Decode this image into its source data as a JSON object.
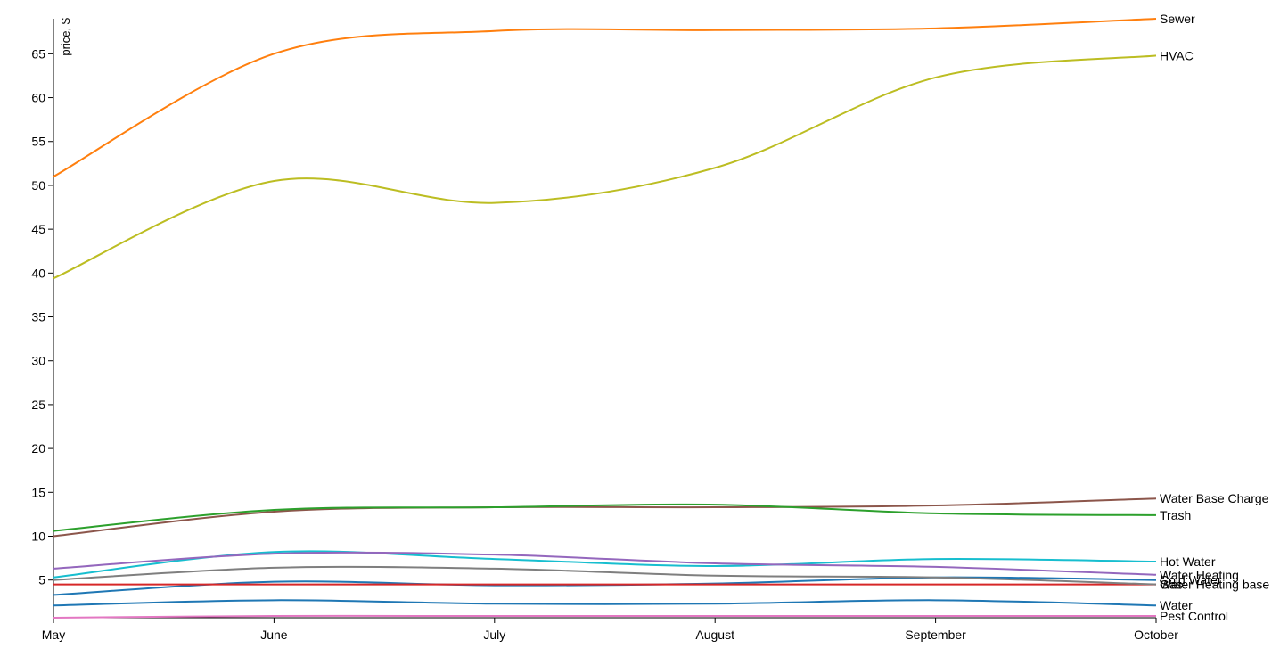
{
  "chart_data": {
    "type": "line",
    "y_label": "price, $",
    "categories": [
      "May",
      "June",
      "July",
      "August",
      "September",
      "October"
    ],
    "ylim": [
      0.7,
      69
    ],
    "yticks": [
      5,
      10,
      15,
      20,
      25,
      30,
      35,
      40,
      45,
      50,
      55,
      60,
      65
    ],
    "series": [
      {
        "name": "Sewer",
        "color": "#ff7f0e",
        "values": [
          51,
          65,
          67.6,
          67.7,
          67.9,
          69
        ]
      },
      {
        "name": "HVAC",
        "color": "#bcbd22",
        "values": [
          39.4,
          50.5,
          48,
          52,
          62.3,
          64.8
        ]
      },
      {
        "name": "Water Base Charge",
        "color": "#8c564b",
        "values": [
          10,
          12.8,
          13.3,
          13.3,
          13.5,
          14.3
        ]
      },
      {
        "name": "Trash",
        "color": "#2ca02c",
        "values": [
          10.6,
          13,
          13.3,
          13.6,
          12.6,
          12.4
        ]
      },
      {
        "name": "Hot Water",
        "color": "#17becf",
        "values": [
          5.3,
          8.2,
          7.4,
          6.6,
          7.4,
          7.1
        ]
      },
      {
        "name": "Water Heating",
        "color": "#9467bd",
        "values": [
          6.3,
          8,
          7.9,
          6.9,
          6.5,
          5.6
        ]
      },
      {
        "name": "Cold Water",
        "color": "#1f77b4",
        "values": [
          3.3,
          4.8,
          4.4,
          4.6,
          5.3,
          5
        ]
      },
      {
        "name": "Gas",
        "color": "#d62728",
        "values": [
          4.5,
          4.5,
          4.5,
          4.5,
          4.5,
          4.5
        ]
      },
      {
        "name": "Water Heating base",
        "color": "#7f7f7f",
        "values": [
          5,
          6.4,
          6.3,
          5.5,
          5.3,
          4.5
        ]
      },
      {
        "name": "Water",
        "color": "#1f77b4",
        "values": [
          2.1,
          2.7,
          2.3,
          2.3,
          2.7,
          2.1
        ]
      },
      {
        "name": "Pest Control",
        "color": "#e377c2",
        "values": [
          0.7,
          0.9,
          0.9,
          0.9,
          0.9,
          0.9
        ]
      }
    ]
  }
}
